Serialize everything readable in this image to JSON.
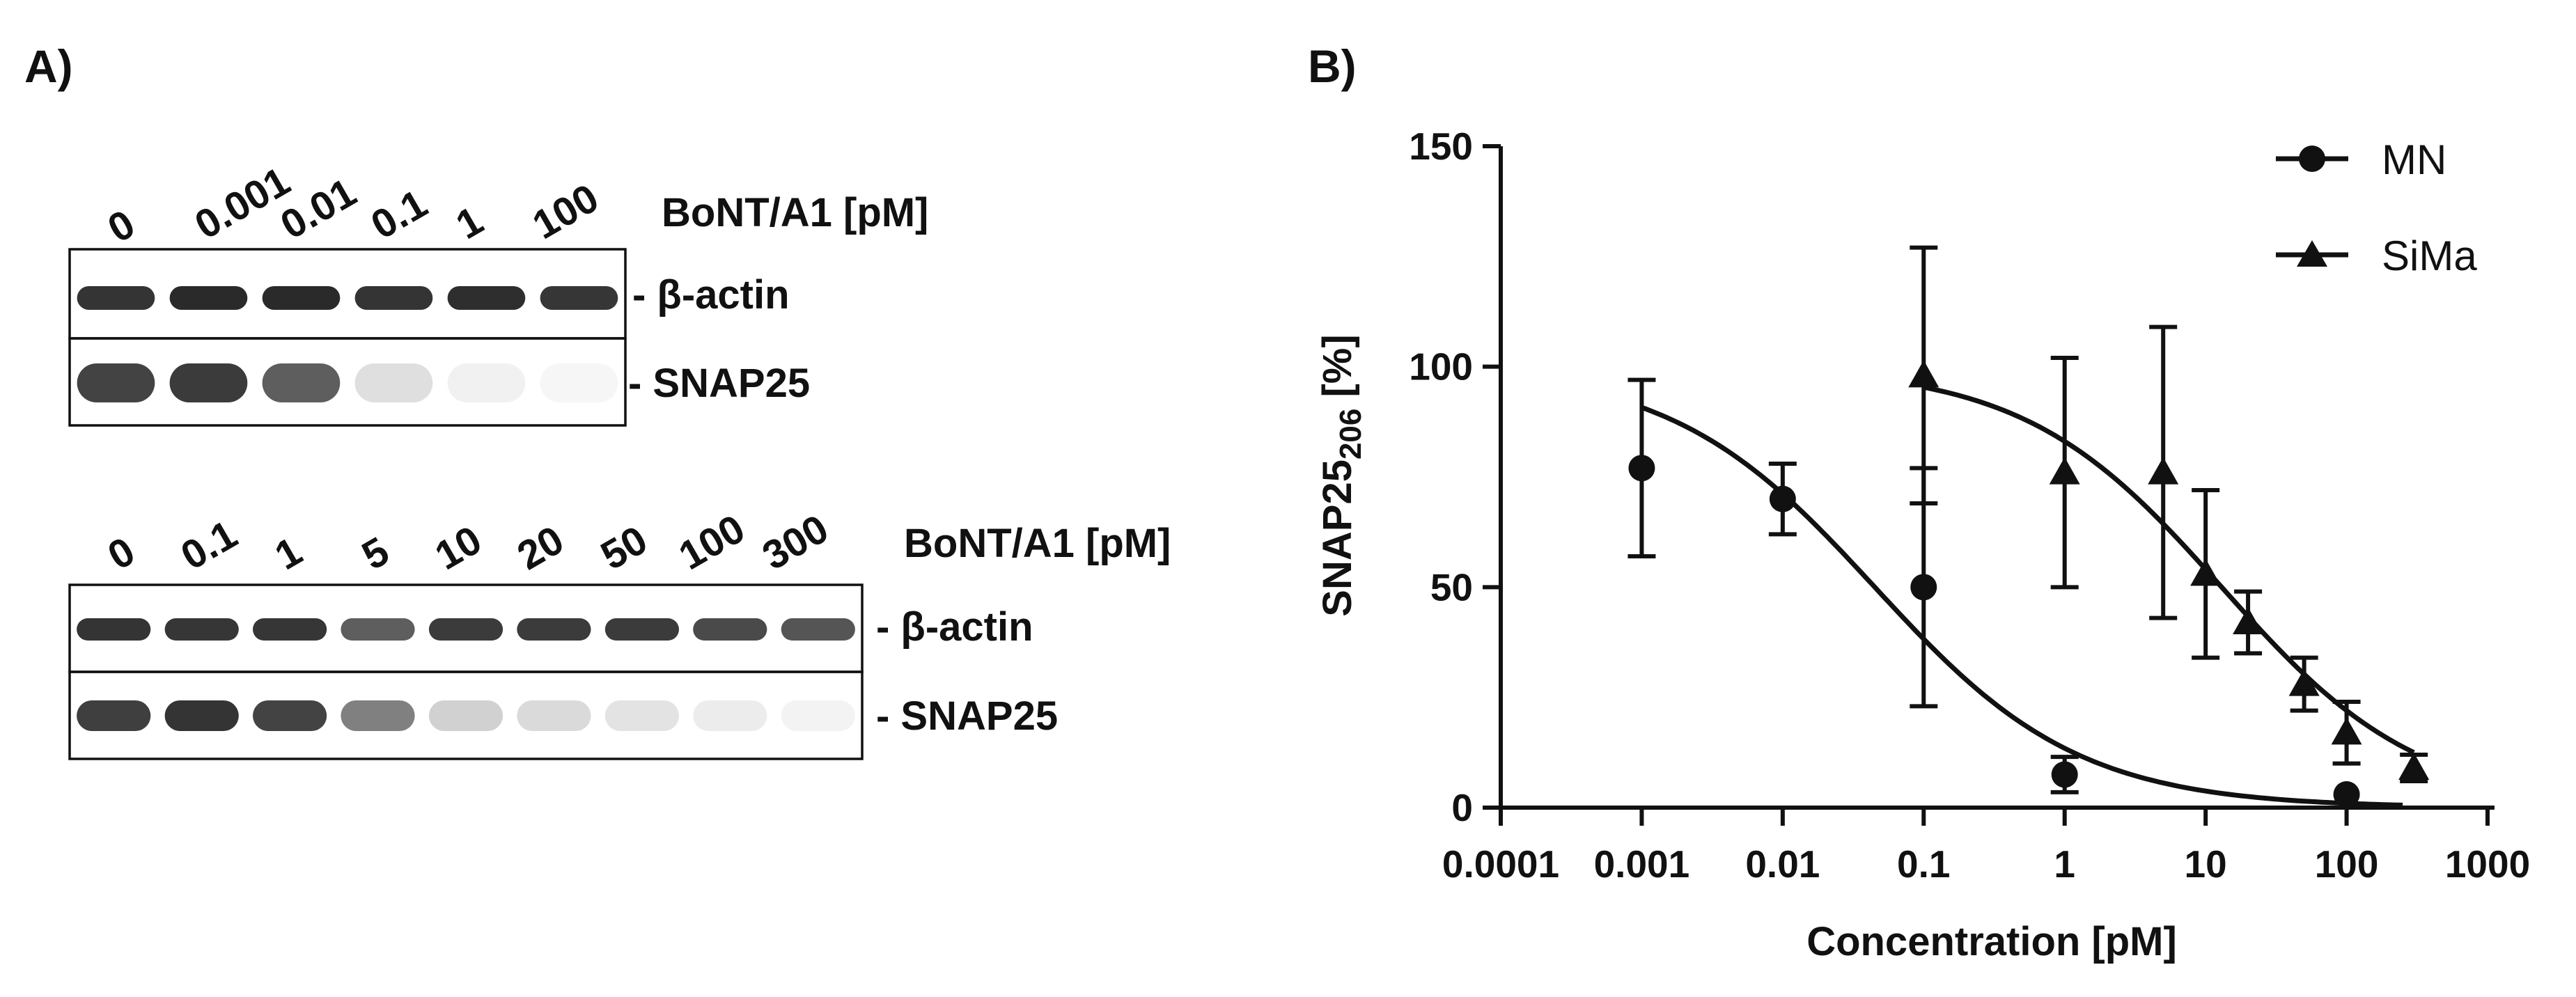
{
  "panel_a": {
    "label": "A)",
    "blots": [
      {
        "header": "BoNT/A1 [pM]",
        "lanes": [
          "0",
          "0.001",
          "0.01",
          "0.1",
          "1",
          "100"
        ],
        "rows": [
          {
            "label": "- β-actin",
            "intensity": [
              0.85,
              0.9,
              0.9,
              0.85,
              0.88,
              0.84
            ]
          },
          {
            "label": "- SNAP25",
            "intensity": [
              0.78,
              0.82,
              0.7,
              0.22,
              0.1,
              0.05
            ]
          }
        ]
      },
      {
        "header": "BoNT/A1 [pM]",
        "lanes": [
          "0",
          "0.1",
          "1",
          "5",
          "10",
          "20",
          "50",
          "100",
          "300"
        ],
        "rows": [
          {
            "label": "- β-actin",
            "intensity": [
              0.85,
              0.84,
              0.84,
              0.7,
              0.82,
              0.82,
              0.82,
              0.75,
              0.72
            ]
          },
          {
            "label": "- SNAP25",
            "intensity": [
              0.8,
              0.85,
              0.78,
              0.6,
              0.3,
              0.25,
              0.2,
              0.14,
              0.08
            ]
          }
        ]
      }
    ]
  },
  "panel_b": {
    "label": "B)",
    "chart_data": {
      "type": "scatter",
      "xscale": "log",
      "xlim": [
        0.0001,
        1000
      ],
      "ylim": [
        0,
        150
      ],
      "x_ticks": [
        "0.0001",
        "0.001",
        "0.01",
        "0.1",
        "1",
        "10",
        "100",
        "1000"
      ],
      "y_ticks": [
        "0",
        "50",
        "100",
        "150"
      ],
      "xlabel": "Concentration [pM]",
      "ylabel_main": "SNAP25",
      "ylabel_sub": "206",
      "ylabel_unit": " [%]",
      "legend_position": "top-right",
      "series": [
        {
          "name": "MN",
          "marker": "circle",
          "points": [
            {
              "x": 0.001,
              "y": 77,
              "err": 20
            },
            {
              "x": 0.01,
              "y": 70,
              "err": 8
            },
            {
              "x": 0.1,
              "y": 50,
              "err": 27
            },
            {
              "x": 1,
              "y": 7.5,
              "err": 4
            },
            {
              "x": 100,
              "y": 3,
              "err": 0
            }
          ],
          "fit": {
            "top": 100,
            "bottom": 0,
            "ic50": 0.045,
            "hill": 0.6,
            "x_range": [
              0.001,
              250
            ]
          }
        },
        {
          "name": "SiMa",
          "marker": "triangle",
          "points": [
            {
              "x": 0.1,
              "y": 98,
              "err": 29
            },
            {
              "x": 1,
              "y": 76,
              "err": 26
            },
            {
              "x": 5,
              "y": 76,
              "err": 33
            },
            {
              "x": 10,
              "y": 53,
              "err": 19
            },
            {
              "x": 20,
              "y": 42,
              "err": 7
            },
            {
              "x": 50,
              "y": 28,
              "err": 6
            },
            {
              "x": 100,
              "y": 17,
              "err": 7
            },
            {
              "x": 300,
              "y": 9,
              "err": 3
            }
          ],
          "fit": {
            "top": 100,
            "bottom": 0,
            "ic50": 13,
            "hill": 0.62,
            "x_range": [
              0.1,
              300
            ]
          }
        }
      ]
    }
  }
}
